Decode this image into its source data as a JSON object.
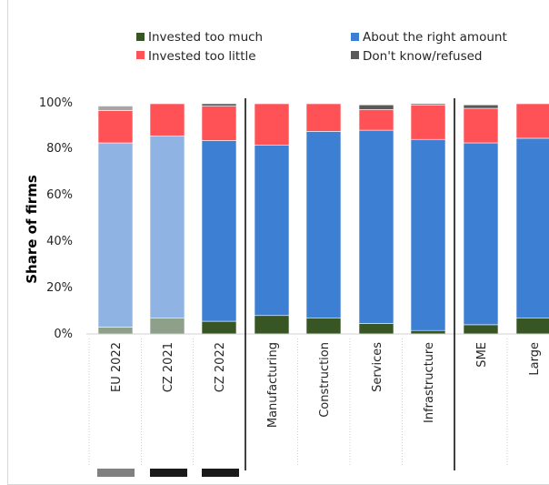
{
  "chart_data": {
    "type": "bar",
    "stacked": true,
    "title": "",
    "xlabel": "",
    "ylabel": "Share of firms",
    "ylim": [
      0,
      100
    ],
    "yticks": [
      "0%",
      "20%",
      "40%",
      "60%",
      "80%",
      "100%"
    ],
    "legend_placement": "top",
    "categories": [
      "EU 2022",
      "CZ 2021",
      "CZ 2022",
      "Manufacturing",
      "Construction",
      "Services",
      "Infrastructure",
      "SME",
      "Large"
    ],
    "series": [
      {
        "name": "Invested too much",
        "values": [
          3,
          7,
          5.5,
          8,
          7,
          4.5,
          1.5,
          4,
          7
        ]
      },
      {
        "name": "About the right amount",
        "values": [
          80,
          79,
          78.5,
          74,
          81,
          84,
          83,
          79,
          78
        ]
      },
      {
        "name": "Invested too little",
        "values": [
          14,
          14,
          15,
          18,
          12,
          9,
          15,
          15,
          15
        ]
      },
      {
        "name": "Don't know/refused",
        "values": [
          2,
          0,
          1,
          0,
          0,
          2,
          0.5,
          1.5,
          0
        ]
      }
    ]
  },
  "colors": {
    "too_much": "#375623",
    "too_much_ref": "#8e9f8a",
    "right": "#3d7fd3",
    "right_ref": "#8fb4e3",
    "little": "#fe5257",
    "dont_know": "#595959",
    "dont_know_ref": "#a6a6a6",
    "ref_bar_grey": "#808080",
    "ref_bar_black": "#1a1a1a"
  }
}
